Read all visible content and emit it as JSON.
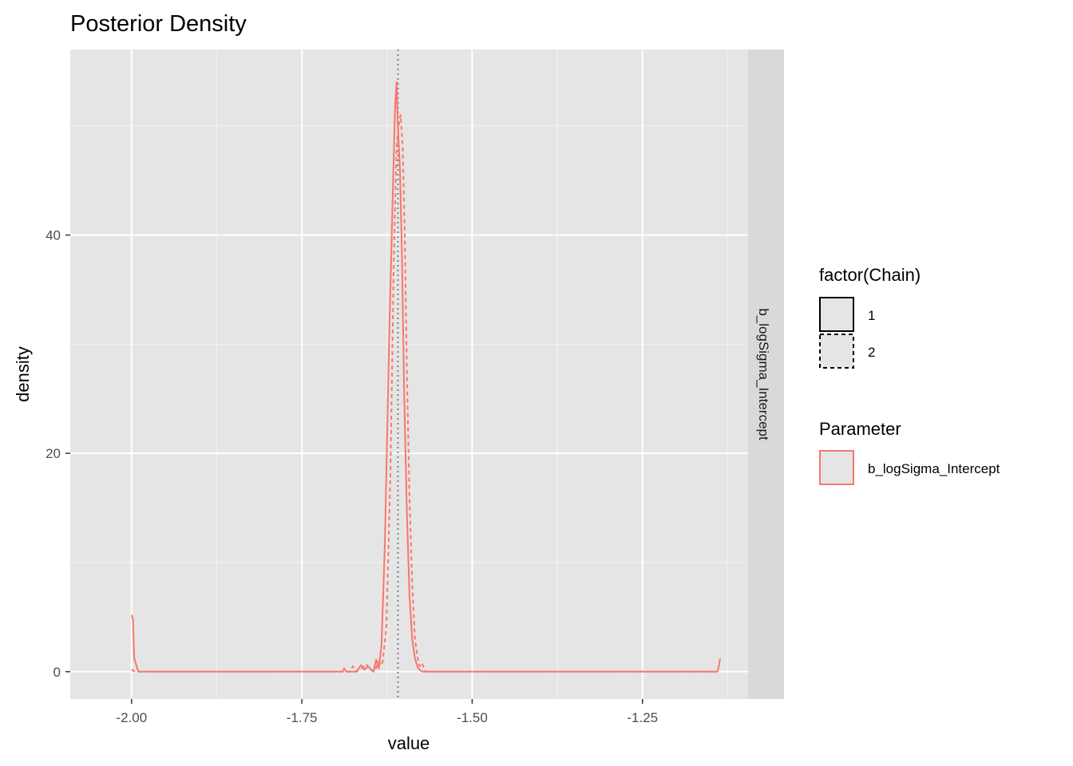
{
  "chart_data": {
    "type": "line",
    "title": "Posterior Density",
    "xlabel": "value",
    "ylabel": "density",
    "xlim": [
      -2.09,
      -1.095
    ],
    "ylim": [
      -2.5,
      57
    ],
    "x_ticks": [
      -2.0,
      -1.75,
      -1.5,
      -1.25
    ],
    "x_tick_labels": [
      "-2.00",
      "-1.75",
      "-1.50",
      "-1.25"
    ],
    "y_ticks": [
      0,
      20,
      40
    ],
    "y_tick_labels": [
      "0",
      "20",
      "40"
    ],
    "facet_label": "b_logSigma_Intercept",
    "reference_line": {
      "x": -1.609,
      "style": "dotted",
      "color": "#7f7f7f"
    },
    "grid": true,
    "legend_position": "right",
    "series": [
      {
        "name": "1",
        "parameter": "b_logSigma_Intercept",
        "linetype": "solid",
        "color": "#F8766D",
        "x": [
          -2.0,
          -1.998,
          -1.996,
          -1.99,
          -1.9,
          -1.8,
          -1.7,
          -1.69,
          -1.688,
          -1.685,
          -1.67,
          -1.663,
          -1.658,
          -1.653,
          -1.645,
          -1.641,
          -1.637,
          -1.633,
          -1.628,
          -1.622,
          -1.616,
          -1.613,
          -1.611,
          -1.609,
          -1.606,
          -1.603,
          -1.6,
          -1.596,
          -1.592,
          -1.588,
          -1.584,
          -1.58,
          -1.576,
          -1.572,
          -1.56,
          -1.5,
          -1.4,
          -1.3,
          -1.2,
          -1.14,
          -1.138,
          -1.136
        ],
        "y": [
          5.2,
          4.8,
          1.2,
          0,
          0,
          0,
          0,
          0,
          0.3,
          0,
          0,
          0.6,
          0.2,
          0.5,
          0,
          1.1,
          0.3,
          2.5,
          12,
          30,
          45,
          52,
          54,
          50,
          46,
          38,
          26,
          15,
          7,
          3,
          1.2,
          0.4,
          0.1,
          0,
          0,
          0,
          0,
          0,
          0,
          0,
          0.5,
          1.2
        ]
      },
      {
        "name": "2",
        "parameter": "b_logSigma_Intercept",
        "linetype": "dashed",
        "color": "#F8766D",
        "x": [
          -2.0,
          -1.995,
          -1.99,
          -1.9,
          -1.8,
          -1.7,
          -1.68,
          -1.675,
          -1.67,
          -1.662,
          -1.656,
          -1.65,
          -1.643,
          -1.638,
          -1.632,
          -1.626,
          -1.62,
          -1.615,
          -1.611,
          -1.608,
          -1.605,
          -1.602,
          -1.599,
          -1.596,
          -1.592,
          -1.588,
          -1.584,
          -1.58,
          -1.577,
          -1.574,
          -1.571,
          -1.568,
          -1.56,
          -1.5,
          -1.4,
          -1.3,
          -1.2,
          -1.14
        ],
        "y": [
          0.2,
          0,
          0,
          0,
          0,
          0,
          0,
          0.5,
          0,
          0.3,
          0.7,
          0.2,
          0,
          0.9,
          0.6,
          4,
          18,
          38,
          48,
          50,
          51,
          48,
          40,
          28,
          16,
          8,
          3,
          1.2,
          0.5,
          0.8,
          0.4,
          0,
          0,
          0,
          0,
          0,
          0,
          0
        ]
      }
    ],
    "legends": [
      {
        "title": "factor(Chain)",
        "entries": [
          {
            "label": "1",
            "linetype": "solid"
          },
          {
            "label": "2",
            "linetype": "dashed"
          }
        ]
      },
      {
        "title": "Parameter",
        "entries": [
          {
            "label": "b_logSigma_Intercept",
            "color": "#F8766D"
          }
        ]
      }
    ]
  }
}
